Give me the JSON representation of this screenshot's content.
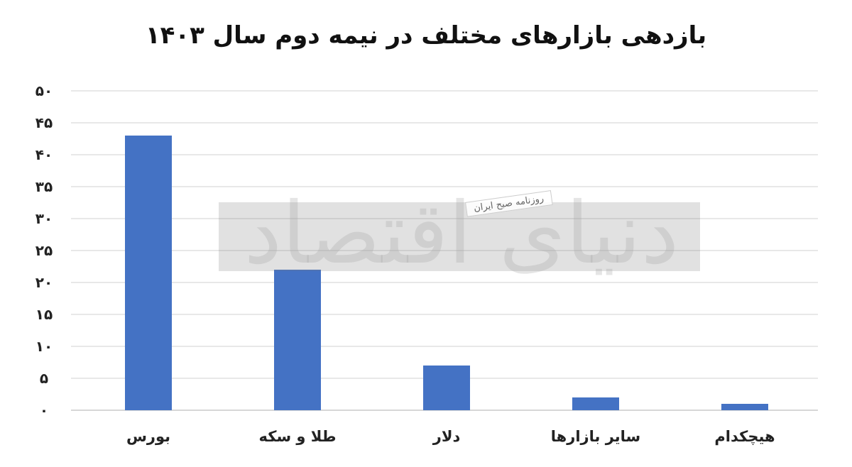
{
  "chart_data": {
    "type": "bar",
    "title": "بازدهی بازارهای مختلف در نیمه دوم سال ۱۴۰۳",
    "categories": [
      "بورس",
      "طلا و سکه",
      "دلار",
      "سایر بازارها",
      "هیچکدام"
    ],
    "values": [
      43,
      22,
      7,
      2,
      1
    ],
    "ylim": [
      0,
      50
    ],
    "yticks": [
      "۰",
      "۵",
      "۱۰",
      "۱۵",
      "۲۰",
      "۲۵",
      "۳۰",
      "۳۵",
      "۴۰",
      "۴۵",
      "۵۰"
    ],
    "ytick_values": [
      0,
      5,
      10,
      15,
      20,
      25,
      30,
      35,
      40,
      45,
      50
    ],
    "grid": true,
    "bar_color": "#4472C4",
    "grid_color": "#d9d9d9"
  },
  "watermark": {
    "logo_text": "دنیای اقتصاد",
    "tagline": "روزنامه صبح ایران"
  }
}
